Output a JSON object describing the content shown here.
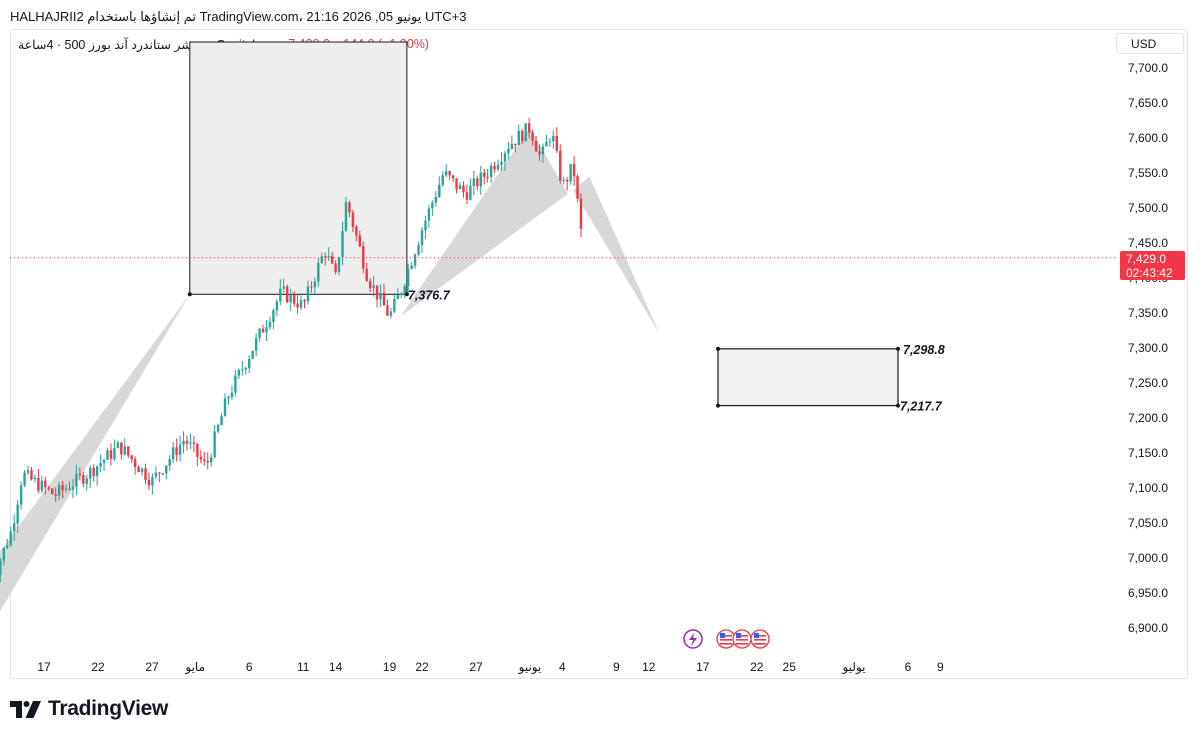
{
  "header": {
    "author_line": "HALHAJRII2 تم إنشاؤها باستخدام TradingView.com، 21:16 2026 ,05 يونيو UTC+3"
  },
  "legend": {
    "symbol": "مؤشر ستاندرد آند بورز 500 · 4ساعة · Capital.com",
    "price": "7,429.0",
    "change": "−144.0 (−1.90%)"
  },
  "currency": "USD",
  "price_tag": {
    "price": "7,429.0",
    "countdown": "02:43:42"
  },
  "brand": {
    "name": "TradingView"
  },
  "colors": {
    "up": "#26a69a",
    "down": "#f23645",
    "pattern_fill": "#d4d4d4",
    "box_fill": "#eeeeee"
  },
  "chart_data": {
    "type": "candlestick",
    "symbol": "مؤشر ستاندرد آند بورز 500 · 4ساعة · Capital.com",
    "timeframe": "4ساعة",
    "currency": "USD",
    "ylim": [
      6870,
      7740
    ],
    "y_ticks": [
      "7,700.0",
      "7,650.0",
      "7,600.0",
      "7,550.0",
      "7,500.0",
      "7,450.0",
      "7,400.0",
      "7,350.0",
      "7,300.0",
      "7,250.0",
      "7,200.0",
      "7,150.0",
      "7,100.0",
      "7,050.0",
      "7,000.0",
      "6,950.0",
      "6,900.0"
    ],
    "x_ticks": [
      "17",
      "22",
      "27",
      "مايو",
      "6",
      "11",
      "14",
      "19",
      "22",
      "27",
      "يونيو",
      "4",
      "9",
      "12",
      "17",
      "22",
      "25",
      "يوليو",
      "6",
      "9"
    ],
    "price_path": [
      {
        "x": "Apr 12",
        "y": 6960
      },
      {
        "x": "Apr 14",
        "y": 7040
      },
      {
        "x": "Apr 15",
        "y": 7120
      },
      {
        "x": "Apr 18",
        "y": 7090
      },
      {
        "x": "Apr 21",
        "y": 7120
      },
      {
        "x": "Apr 24",
        "y": 7160
      },
      {
        "x": "Apr 27",
        "y": 7110
      },
      {
        "x": "Apr 30",
        "y": 7170
      },
      {
        "x": "May 2",
        "y": 7130
      },
      {
        "x": "May 4",
        "y": 7230
      },
      {
        "x": "May 6",
        "y": 7290
      },
      {
        "x": "May 9",
        "y": 7380
      },
      {
        "x": "May 11",
        "y": 7360
      },
      {
        "x": "May 13",
        "y": 7440
      },
      {
        "x": "May 14",
        "y": 7400
      },
      {
        "x": "May 15",
        "y": 7510
      },
      {
        "x": "May 17",
        "y": 7400
      },
      {
        "x": "May 19",
        "y": 7345
      },
      {
        "x": "May 20",
        "y": 7380
      },
      {
        "x": "May 22",
        "y": 7470
      },
      {
        "x": "May 24",
        "y": 7550
      },
      {
        "x": "May 26",
        "y": 7520
      },
      {
        "x": "May 28",
        "y": 7550
      },
      {
        "x": "May 30",
        "y": 7590
      },
      {
        "x": "Jun 1",
        "y": 7615
      },
      {
        "x": "Jun 2",
        "y": 7570
      },
      {
        "x": "Jun 3",
        "y": 7610
      },
      {
        "x": "Jun 4",
        "y": 7530
      },
      {
        "x": "Jun 5",
        "y": 7560
      },
      {
        "x": "Jun 6",
        "y": 7429
      }
    ],
    "last_price": 7429.0,
    "change": -144.0,
    "change_pct": -1.9,
    "levels": [
      {
        "label": "7,376.7",
        "value": 7376.7
      },
      {
        "label": "7,298.8",
        "value": 7298.8
      },
      {
        "label": "7,217.7",
        "value": 7217.7
      }
    ],
    "grid": false
  }
}
